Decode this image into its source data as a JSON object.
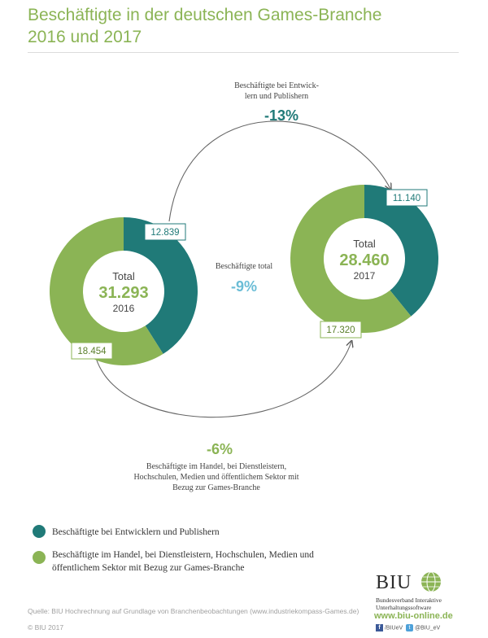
{
  "header": {
    "title_line1": "Beschäftigte in der deutschen Games-Branche",
    "title_line2": "2016 und 2017"
  },
  "colors": {
    "teal": "#207a78",
    "green": "#8bb455",
    "light_blue": "#6bbdd6"
  },
  "chart_data": {
    "type": "donut",
    "charts": [
      {
        "year": "2016",
        "total_label": "Total",
        "total": "31.293",
        "segments": [
          {
            "series": "Beschäftigte bei Entwicklern und Publishern",
            "value": 12839,
            "label": "12.839",
            "color": "#207a78"
          },
          {
            "series": "Beschäftigte im Handel, bei Dienstleistern, Hochschulen, Medien und öffentlichem Sektor mit Bezug zur Games-Branche",
            "value": 18454,
            "label": "18.454",
            "color": "#8bb455"
          }
        ]
      },
      {
        "year": "2017",
        "total_label": "Total",
        "total": "28.460",
        "segments": [
          {
            "series": "Beschäftigte bei Entwicklern und Publishern",
            "value": 11140,
            "label": "11.140",
            "color": "#207a78"
          },
          {
            "series": "Beschäftigte im Handel, bei Dienstleistern, Hochschulen, Medien und öffentlichem Sektor mit Bezug zur Games-Branche",
            "value": 17320,
            "label": "17.320",
            "color": "#8bb455"
          }
        ]
      }
    ],
    "annotations": {
      "top_label_line1": "Beschäftigte bei Entwick-",
      "top_label_line2": "lern und Publishern",
      "top_change": "-13%",
      "middle_label": "Beschäftigte total",
      "middle_change": "-9%",
      "bottom_change": "-6%",
      "bottom_label_line1": "Beschäftigte im Handel, bei Dienstleistern,",
      "bottom_label_line2": "Hochschulen, Medien und öffentlichem Sektor mit",
      "bottom_label_line3": "Bezug zur Games-Branche"
    }
  },
  "legend": [
    {
      "label": "Beschäftigte bei Entwicklern und Publishern",
      "color": "#207a78"
    },
    {
      "label": "Beschäftigte im Handel, bei Dienstleistern, Hochschulen, Medien und öffentlichem Sektor mit Bezug zur Games-Branche",
      "color": "#8bb455"
    }
  ],
  "footer": {
    "source": "Quelle: BIU Hochrechnung auf Grundlage von Branchenbeobachtungen (www.industriekompass-Games.de)",
    "copyright": "© BIU 2017",
    "logo_text": "BIU",
    "logo_sub_line1": "Bundesverband Interaktive",
    "logo_sub_line2": "Unterhaltungssoftware",
    "url": "www.biu-online.de",
    "social_fb": "/BIUeV",
    "social_tw": "@BIU_eV"
  }
}
